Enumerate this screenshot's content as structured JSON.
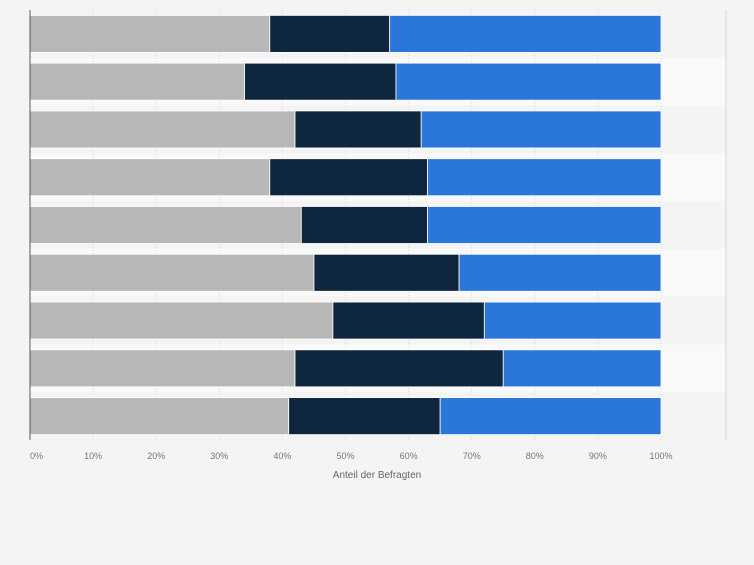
{
  "chart_data": {
    "type": "bar",
    "orientation": "horizontal",
    "stacked": "percent",
    "categories": [
      "",
      "",
      "",
      "",
      "",
      "",
      "",
      "",
      ""
    ],
    "series": [
      {
        "color": "#b7b7b7",
        "values": [
          38,
          34,
          42,
          38,
          43,
          45,
          48,
          42,
          41
        ]
      },
      {
        "color": "#0f263f",
        "values": [
          19,
          24,
          20,
          25,
          20,
          23,
          24,
          33,
          24
        ]
      },
      {
        "color": "#2b76d9",
        "values": [
          43,
          42,
          38,
          37,
          37,
          32,
          28,
          25,
          35
        ]
      }
    ],
    "xlim": [
      0,
      100
    ],
    "xticks": [
      "0%",
      "10%",
      "20%",
      "30%",
      "40%",
      "50%",
      "60%",
      "70%",
      "80%",
      "90%",
      "100%"
    ],
    "xlabel": "Anteil der Befragten",
    "ylabel": "",
    "grid": true,
    "colors": {
      "background": "#f4f4f4",
      "row_band": "#f9f9f9",
      "grid": "#d8d8d8",
      "axis": "#5a5a5a"
    }
  }
}
